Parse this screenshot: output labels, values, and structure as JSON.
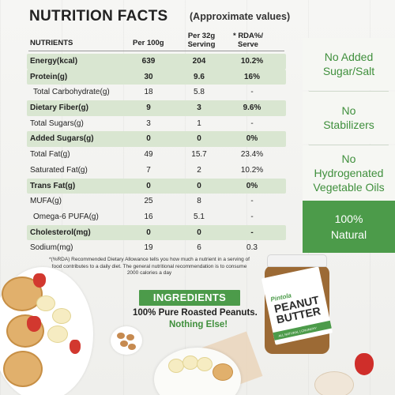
{
  "title": "NUTRITION FACTS",
  "subtitle": "(Approximate values)",
  "headers": {
    "nutrients": "NUTRIENTS",
    "per100": "Per 100g",
    "per32_line1": "Per 32g",
    "per32_line2": "Serving",
    "rda_line1": "* RDA%/",
    "rda_line2": "Serve"
  },
  "rows": [
    {
      "name": "Energy(kcal)",
      "per100": "639",
      "per32": "204",
      "rda": "10.2%"
    },
    {
      "name": "Protein(g)",
      "per100": "30",
      "per32": "9.6",
      "rda": "16%"
    },
    {
      "name": "Total Carbohydrate(g)",
      "per100": "18",
      "per32": "5.8",
      "rda": "-"
    },
    {
      "name": "Dietary Fiber(g)",
      "per100": "9",
      "per32": "3",
      "rda": "9.6%"
    },
    {
      "name": "Total Sugars(g)",
      "per100": "3",
      "per32": "1",
      "rda": "-"
    },
    {
      "name": "Added Sugars(g)",
      "per100": "0",
      "per32": "0",
      "rda": "0%"
    },
    {
      "name": "Total Fat(g)",
      "per100": "49",
      "per32": "15.7",
      "rda": "23.4%"
    },
    {
      "name": "Saturated Fat(g)",
      "per100": "7",
      "per32": "2",
      "rda": "10.2%"
    },
    {
      "name": "Trans Fat(g)",
      "per100": "0",
      "per32": "0",
      "rda": "0%"
    },
    {
      "name": "MUFA(g)",
      "per100": "25",
      "per32": "8",
      "rda": "-"
    },
    {
      "name": "Omega-6 PUFA(g)",
      "per100": "16",
      "per32": "5.1",
      "rda": "-"
    },
    {
      "name": "Cholesterol(mg)",
      "per100": "0",
      "per32": "0",
      "rda": "-"
    },
    {
      "name": "Sodium(mg)",
      "per100": "19",
      "per32": "6",
      "rda": "0.3"
    }
  ],
  "footnote": "*(%RDA) Recommended Dietary Allowance tells you how much a nutrient in a serving of food contributes to a daily diet. The general nutritional recommendation is to consume 2000 calories a day",
  "claims": {
    "no_added_1": "No Added",
    "no_added_2": "Sugar/Salt",
    "no_stab_1": "No",
    "no_stab_2": "Stabilizers",
    "no_hydro_1": "No",
    "no_hydro_2": "Hydrogenated",
    "no_hydro_3": "Vegetable Oils",
    "natural_1": "100%",
    "natural_2": "Natural"
  },
  "ingredients": {
    "badge": "INGREDIENTS",
    "line1": "100% Pure Roasted Peanuts.",
    "line2": "Nothing Else!"
  },
  "jar": {
    "brand": "Pintola",
    "name_1": "PEANUT",
    "name_2": "BUTTER",
    "strip": "ALL NATURAL | CRUNCHY"
  },
  "colors": {
    "accent_green": "#4c9b4a",
    "text_green": "#3f8f3c",
    "row_shade": "#d9e6d1"
  }
}
